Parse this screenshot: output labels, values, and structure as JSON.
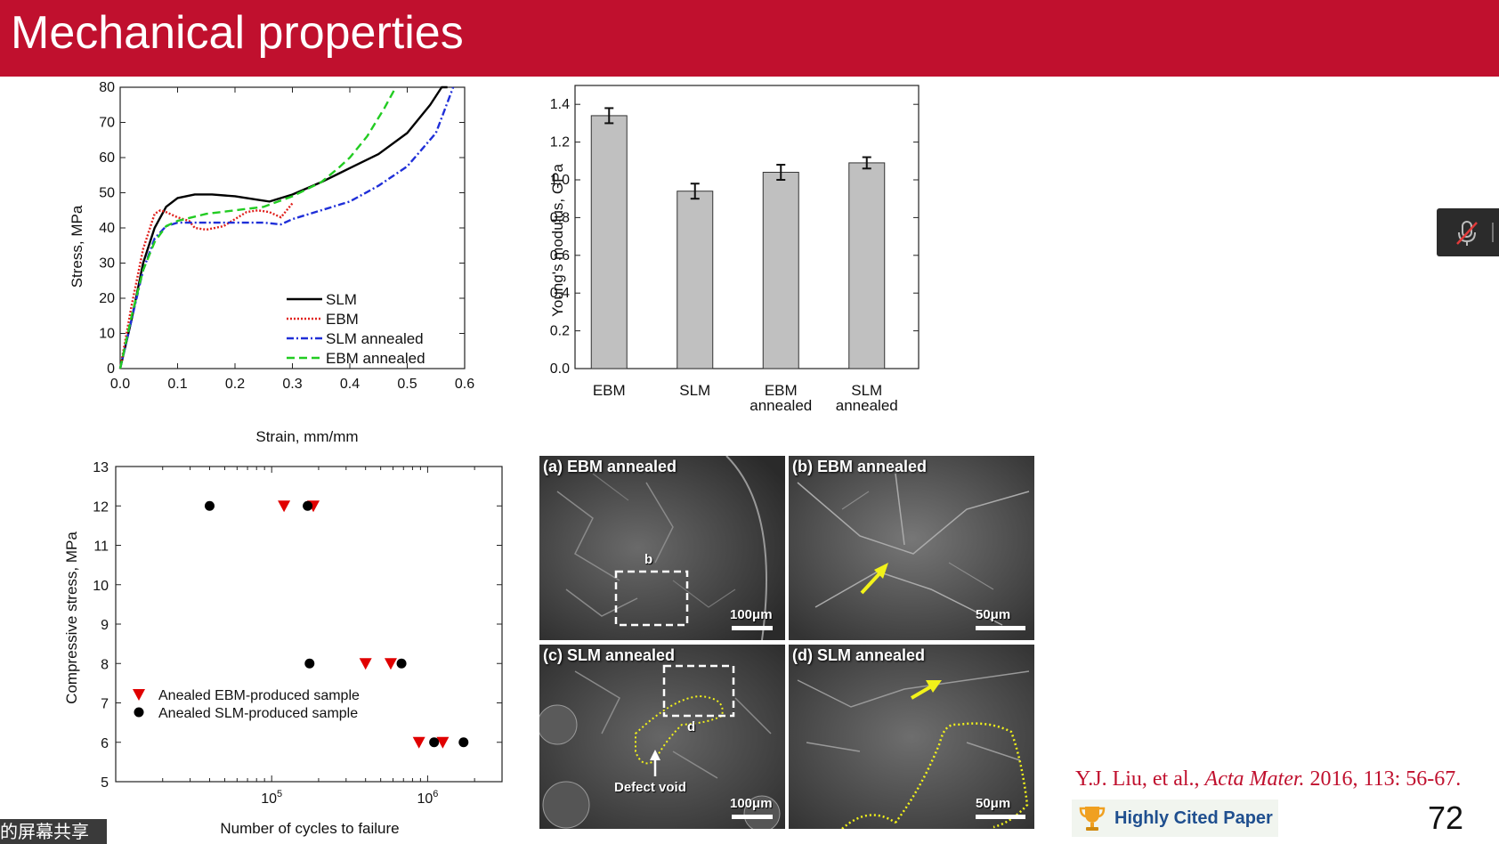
{
  "header": {
    "title": "Mechanical properties"
  },
  "chart_stress_strain": {
    "type": "line",
    "xlabel": "Strain, mm/mm",
    "ylabel": "Stress, MPa",
    "xlim": [
      0,
      0.6
    ],
    "ylim": [
      0,
      80
    ],
    "xticks": [
      "0.0",
      "0.1",
      "0.2",
      "0.3",
      "0.4",
      "0.5",
      "0.6"
    ],
    "yticks": [
      "0",
      "10",
      "20",
      "30",
      "40",
      "50",
      "60",
      "70",
      "80"
    ],
    "legend": "center-right",
    "series": [
      {
        "name": "SLM",
        "color": "#000000",
        "style": "solid",
        "x": [
          0,
          0.02,
          0.04,
          0.06,
          0.08,
          0.1,
          0.13,
          0.16,
          0.2,
          0.24,
          0.26,
          0.3,
          0.35,
          0.4,
          0.45,
          0.5,
          0.54,
          0.56,
          0.57
        ],
        "y": [
          0,
          14,
          30,
          40,
          46,
          48.5,
          49.5,
          49.5,
          49,
          48,
          47.5,
          49.5,
          53,
          57,
          61,
          67,
          75,
          80,
          80
        ]
      },
      {
        "name": "EBM",
        "color": "#e0201c",
        "style": "dotted",
        "x": [
          0,
          0.02,
          0.04,
          0.06,
          0.07,
          0.08,
          0.1,
          0.12,
          0.13,
          0.15,
          0.18,
          0.2,
          0.22,
          0.24,
          0.26,
          0.28,
          0.3
        ],
        "y": [
          0,
          18,
          34,
          44,
          45,
          44.5,
          43,
          42,
          40,
          39.5,
          40.5,
          42.5,
          44.5,
          45,
          44.5,
          43,
          47
        ]
      },
      {
        "name": "SLM annealed",
        "color": "#1f2fd8",
        "style": "dashdot",
        "x": [
          0,
          0.02,
          0.04,
          0.06,
          0.08,
          0.1,
          0.15,
          0.2,
          0.25,
          0.28,
          0.3,
          0.35,
          0.4,
          0.45,
          0.5,
          0.55,
          0.58
        ],
        "y": [
          0,
          14,
          28,
          37,
          40.5,
          41.5,
          41.5,
          41.5,
          41.5,
          41,
          42.5,
          45,
          47.5,
          52,
          57.5,
          67,
          80
        ]
      },
      {
        "name": "EBM annealed",
        "color": "#22cc22",
        "style": "dashed",
        "x": [
          0,
          0.02,
          0.04,
          0.06,
          0.08,
          0.1,
          0.15,
          0.2,
          0.25,
          0.3,
          0.35,
          0.38,
          0.4,
          0.43,
          0.46,
          0.48
        ],
        "y": [
          0,
          15,
          28,
          36,
          40.5,
          42,
          44,
          45,
          46,
          49,
          53,
          57,
          60,
          66,
          74,
          80
        ]
      }
    ]
  },
  "chart_modulus": {
    "type": "bar",
    "ylabel": "Young's modulus, GPa",
    "ylim": [
      0,
      1.5
    ],
    "yticks": [
      "0.0",
      "0.2",
      "0.4",
      "0.6",
      "0.8",
      "1.0",
      "1.2",
      "1.4"
    ],
    "categories": [
      "EBM",
      "SLM",
      "EBM annealed",
      "SLM annealed"
    ],
    "category_lines": [
      [
        "EBM"
      ],
      [
        "SLM"
      ],
      [
        "EBM",
        "annealed"
      ],
      [
        "SLM",
        "annealed"
      ]
    ],
    "values": [
      1.34,
      0.94,
      1.04,
      1.09
    ],
    "errors": [
      0.04,
      0.04,
      0.04,
      0.03
    ],
    "bar_color": "#c0c0c0"
  },
  "chart_fatigue": {
    "type": "scatter",
    "xlabel": "Number of cycles to failure",
    "ylabel": "Compressive stress, MPa",
    "xscale": "log",
    "xlim": [
      10000,
      3000000
    ],
    "ylim": [
      5,
      13
    ],
    "xticks_major": [
      "10^5",
      "10^6"
    ],
    "yticks": [
      "5",
      "6",
      "7",
      "8",
      "9",
      "10",
      "11",
      "12",
      "13"
    ],
    "legend": "bottom-left",
    "series": [
      {
        "name": "Anealed EBM-produced sample",
        "marker": "triangle-down",
        "color": "#e00000",
        "x": [
          120000,
          185000,
          400000,
          580000,
          880000,
          1250000
        ],
        "y": [
          12,
          12,
          8,
          8,
          6,
          6
        ]
      },
      {
        "name": "Anealed SLM-produced sample",
        "marker": "circle",
        "color": "#000000",
        "x": [
          40000,
          170000,
          175000,
          680000,
          1100000,
          1700000
        ],
        "y": [
          12,
          12,
          8,
          8,
          6,
          6
        ]
      }
    ]
  },
  "micrographs": {
    "a": {
      "label": "(a) EBM annealed",
      "scale": "100μm",
      "box_label": "b"
    },
    "b": {
      "label": "(b) EBM annealed",
      "scale": "50μm"
    },
    "c": {
      "label": "(c) SLM annealed",
      "scale": "100μm",
      "box_label": "d",
      "annotation": "Defect void"
    },
    "d": {
      "label": "(d) SLM annealed",
      "scale": "50μm"
    },
    "arrow_color": "#f2f21a"
  },
  "citation": {
    "authors": "Y.J. Liu, et al., ",
    "journal": "Acta Mater.",
    "rest": " 2016, 113: 56-67."
  },
  "badge": {
    "text": "Highly Cited Paper"
  },
  "page_number": "72",
  "share_banner": {
    "text": "的屏幕共享"
  }
}
